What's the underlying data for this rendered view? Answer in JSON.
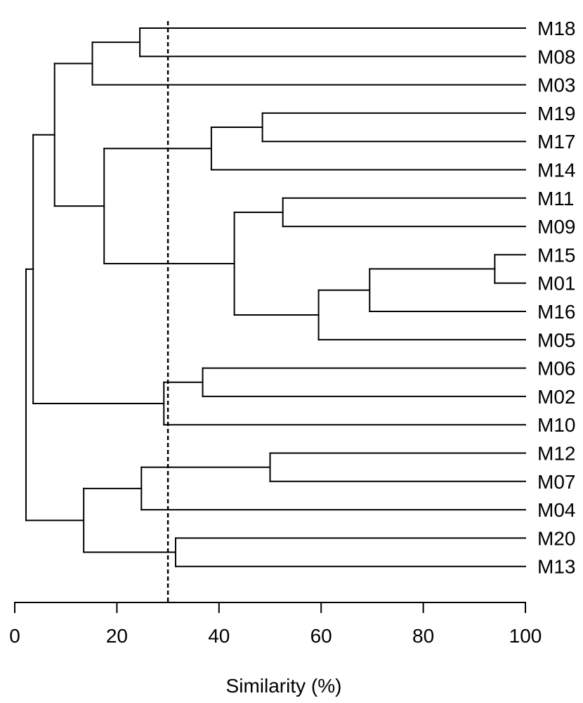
{
  "chart_data": {
    "type": "dendrogram",
    "xlabel": "Similarity (%)",
    "xlim": [
      0,
      100
    ],
    "x_ticks": [
      0,
      20,
      40,
      60,
      80,
      100
    ],
    "x_tick_labels": [
      "0",
      "20",
      "40",
      "60",
      "80",
      "100"
    ],
    "leaves": [
      "M18",
      "M08",
      "M03",
      "M19",
      "M17",
      "M14",
      "M11",
      "M09",
      "M15",
      "M01",
      "M16",
      "M05",
      "M06",
      "M02",
      "M10",
      "M12",
      "M07",
      "M04",
      "M20",
      "M13"
    ],
    "merges": [
      {
        "id": "c1",
        "children": [
          "M18",
          "M08"
        ],
        "similarity": 24.5
      },
      {
        "id": "c2",
        "children": [
          "c1",
          "M03"
        ],
        "similarity": 15.2
      },
      {
        "id": "c3",
        "children": [
          "M19",
          "M17"
        ],
        "similarity": 48.5
      },
      {
        "id": "c4",
        "children": [
          "c3",
          "M14"
        ],
        "similarity": 38.5
      },
      {
        "id": "c5",
        "children": [
          "M11",
          "M09"
        ],
        "similarity": 52.5
      },
      {
        "id": "c6",
        "children": [
          "M15",
          "M01"
        ],
        "similarity": 94.0
      },
      {
        "id": "c7",
        "children": [
          "c6",
          "M16"
        ],
        "similarity": 69.5
      },
      {
        "id": "c8",
        "children": [
          "c7",
          "M05"
        ],
        "similarity": 59.5
      },
      {
        "id": "c9",
        "children": [
          "c5",
          "c8"
        ],
        "similarity": 43.0
      },
      {
        "id": "c10",
        "children": [
          "c4",
          "c9"
        ],
        "similarity": 17.5
      },
      {
        "id": "c11",
        "children": [
          "c2",
          "c10"
        ],
        "similarity": 7.8
      },
      {
        "id": "c12",
        "children": [
          "M06",
          "M02"
        ],
        "similarity": 36.8
      },
      {
        "id": "c13",
        "children": [
          "c12",
          "M10"
        ],
        "similarity": 29.2
      },
      {
        "id": "c14",
        "children": [
          "c11",
          "c13"
        ],
        "similarity": 3.6
      },
      {
        "id": "c15",
        "children": [
          "M12",
          "M07"
        ],
        "similarity": 50.0
      },
      {
        "id": "c16",
        "children": [
          "c15",
          "M04"
        ],
        "similarity": 24.8
      },
      {
        "id": "c17",
        "children": [
          "M20",
          "M13"
        ],
        "similarity": 31.5
      },
      {
        "id": "c18",
        "children": [
          "c16",
          "c17"
        ],
        "similarity": 13.5
      },
      {
        "id": "c19",
        "children": [
          "c14",
          "c18"
        ],
        "similarity": 2.2
      }
    ],
    "cutoff_line": {
      "similarity": 30,
      "style": "dashed"
    }
  }
}
